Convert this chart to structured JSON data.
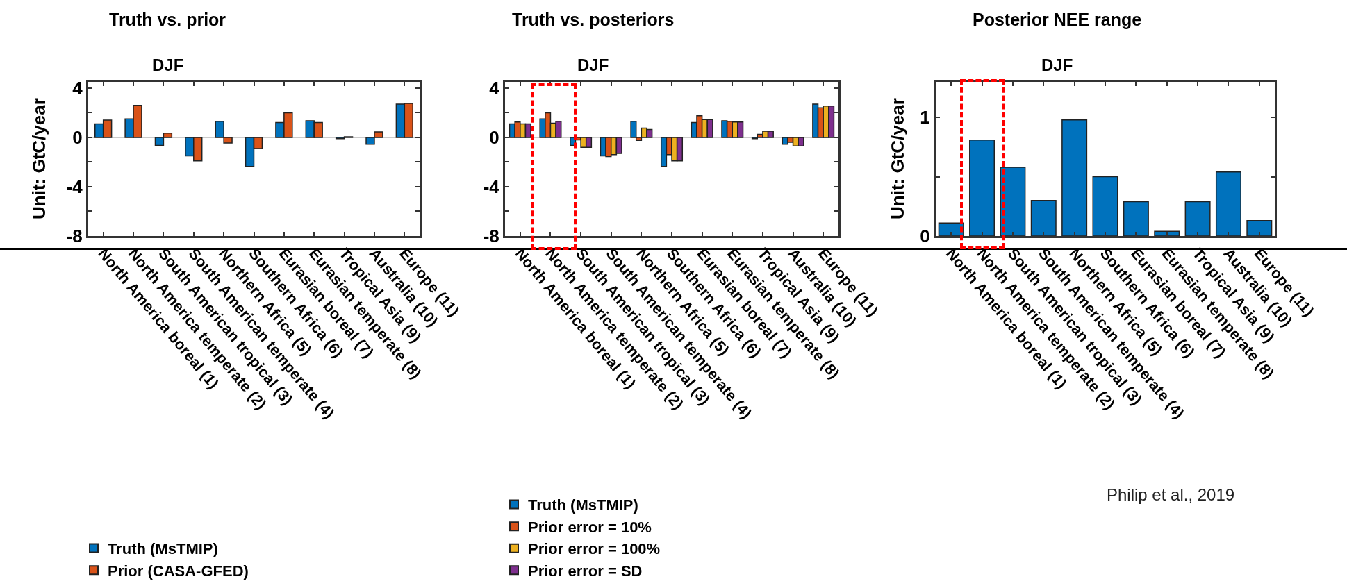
{
  "chart_data": [
    {
      "type": "bar",
      "title": "Truth vs. prior",
      "subtitle": "DJF",
      "ylabel": "Unit: GtC/year",
      "categories": [
        "North America boreal (1)",
        "North America temperate (2)",
        "South American tropical (3)",
        "South American temperate (4)",
        "Northern Africa (5)",
        "Southern Africa (6)",
        "Eurasian boreal (7)",
        "Eurasian temperate (8)",
        "Tropical Asia (9)",
        "Australia (10)",
        "Europe (11)"
      ],
      "series": [
        {
          "name": "Truth (MsTMIP)",
          "color": "#0072bd",
          "values": [
            1.1,
            1.5,
            -0.65,
            -1.5,
            1.3,
            -2.35,
            1.2,
            1.35,
            -0.1,
            -0.55,
            2.7
          ]
        },
        {
          "name": "Prior (CASA-GFED)",
          "color": "#d95319",
          "values": [
            1.4,
            2.6,
            0.35,
            -1.9,
            -0.45,
            -0.9,
            2.0,
            1.2,
            0.05,
            0.45,
            2.75
          ]
        }
      ],
      "ylim": [
        -8,
        4.5
      ],
      "yticks": [
        {
          "value": -8,
          "label": "-8"
        },
        {
          "value": -6,
          "label": null
        },
        -4,
        {
          "value": -2,
          "label": null
        },
        0,
        {
          "value": 2,
          "label": null
        },
        4
      ],
      "grid": false,
      "legend": "bottom left",
      "ref_lines": [
        {
          "axis": "y",
          "value": 0,
          "color": "#808080"
        }
      ]
    },
    {
      "type": "bar",
      "title": "Truth vs. posteriors",
      "subtitle": "DJF",
      "categories": [
        "North America boreal (1)",
        "North America temperate (2)",
        "South American tropical (3)",
        "South American temperate (4)",
        "Northern Africa (5)",
        "Southern Africa (6)",
        "Eurasian boreal (7)",
        "Eurasian temperate (8)",
        "Tropical Asia (9)",
        "Australia (10)",
        "Europe (11)"
      ],
      "series": [
        {
          "name": "Truth (MsTMIP)",
          "color": "#0072bd",
          "values": [
            1.1,
            1.5,
            -0.65,
            -1.5,
            1.3,
            -2.35,
            1.2,
            1.35,
            -0.1,
            -0.55,
            2.7
          ]
        },
        {
          "name": "Prior error = 10%",
          "color": "#d95319",
          "values": [
            1.25,
            2.0,
            -0.2,
            -1.55,
            -0.25,
            -1.4,
            1.75,
            1.3,
            0.25,
            -0.4,
            2.4
          ]
        },
        {
          "name": "Prior error = 100%",
          "color": "#edb120",
          "values": [
            1.1,
            1.15,
            -0.8,
            -1.4,
            0.75,
            -1.9,
            1.45,
            1.25,
            0.5,
            -0.7,
            2.55
          ]
        },
        {
          "name": "Prior error = SD",
          "color": "#7e2f8e",
          "values": [
            1.1,
            1.3,
            -0.8,
            -1.3,
            0.65,
            -1.9,
            1.45,
            1.25,
            0.5,
            -0.7,
            2.55
          ]
        }
      ],
      "ylim": [
        -8,
        4.5
      ],
      "yticks": [
        {
          "value": -8,
          "label": "-8"
        },
        {
          "value": -6,
          "label": null
        },
        -4,
        {
          "value": -2,
          "label": null
        },
        0,
        {
          "value": 2,
          "label": null
        },
        4
      ],
      "grid": false,
      "legend": "bottom left",
      "ref_lines": [
        {
          "axis": "y",
          "value": 0,
          "color": "#808080"
        }
      ]
    },
    {
      "type": "bar",
      "title": "Posterior NEE range",
      "subtitle": "DJF",
      "ylabel": "Unit: GtC/year",
      "categories": [
        "North America boreal (1)",
        "North America temperate (2)",
        "South American tropical (3)",
        "South American temperate (4)",
        "Northern Africa (5)",
        "Southern Africa (6)",
        "Eurasian boreal (7)",
        "Eurasian temperate (8)",
        "Tropical Asia (9)",
        "Australia (10)",
        "Europe (11)"
      ],
      "series": [
        {
          "color": "#0072bd",
          "values": [
            0.11,
            0.81,
            0.58,
            0.3,
            0.98,
            0.5,
            0.29,
            0.04,
            0.29,
            0.54,
            0.13
          ]
        }
      ],
      "ylim": [
        0,
        1.3
      ],
      "yticks": [
        0,
        {
          "value": 0.5,
          "label": null
        },
        1
      ],
      "grid": false,
      "legend": false,
      "annotations": [
        "Philip et al., 2019"
      ]
    }
  ]
}
